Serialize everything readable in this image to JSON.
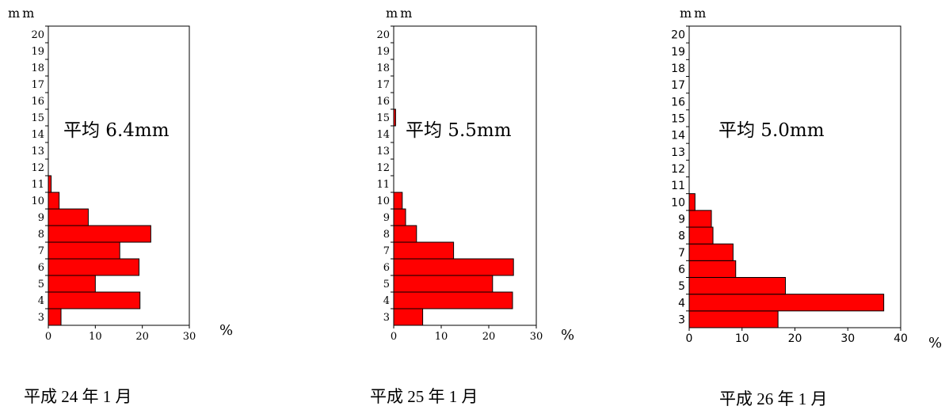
{
  "chart_data": [
    {
      "type": "bar",
      "orientation": "horizontal",
      "y_unit": "mm",
      "x_unit": "%",
      "categories": [
        "3",
        "4",
        "5",
        "6",
        "7",
        "8",
        "9",
        "10",
        "11",
        "12",
        "13",
        "14",
        "15",
        "16",
        "17",
        "18",
        "19",
        "20"
      ],
      "values": [
        2.7,
        19.5,
        10.0,
        19.3,
        15.2,
        21.8,
        8.5,
        2.3,
        0.6,
        0,
        0,
        0,
        0,
        0,
        0,
        0,
        0,
        0
      ],
      "xlim": [
        0,
        30
      ],
      "xticks": [
        "0",
        "10",
        "20",
        "30"
      ],
      "annotation": "平均 6.4mm",
      "caption": "平成 24 年 1 月",
      "bar_color": "#ff0000"
    },
    {
      "type": "bar",
      "orientation": "horizontal",
      "y_unit": "mm",
      "x_unit": "%",
      "categories": [
        "3",
        "4",
        "5",
        "6",
        "7",
        "8",
        "9",
        "10",
        "11",
        "12",
        "13",
        "14",
        "15",
        "16",
        "17",
        "18",
        "19",
        "20"
      ],
      "values": [
        6.1,
        25.0,
        20.8,
        25.2,
        12.6,
        4.8,
        2.5,
        1.8,
        0,
        0,
        0,
        0,
        0.4,
        0,
        0,
        0,
        0,
        0
      ],
      "xlim": [
        0,
        30
      ],
      "xticks": [
        "0",
        "10",
        "20",
        "30"
      ],
      "annotation": "平均 5.5mm",
      "caption": "平成 25 年 1 月",
      "bar_color": "#ff0000"
    },
    {
      "type": "bar",
      "orientation": "horizontal",
      "y_unit": "mm",
      "x_unit": "%",
      "categories": [
        "3",
        "4",
        "5",
        "6",
        "7",
        "8",
        "9",
        "10",
        "11",
        "12",
        "13",
        "14",
        "15",
        "16",
        "17",
        "18",
        "19",
        "20"
      ],
      "values": [
        16.8,
        36.8,
        18.2,
        8.8,
        8.3,
        4.5,
        4.2,
        1.1,
        0,
        0,
        0,
        0,
        0,
        0,
        0,
        0,
        0,
        0
      ],
      "xlim": [
        0,
        40
      ],
      "xticks": [
        "0",
        "10",
        "20",
        "30",
        "40"
      ],
      "annotation": "平均 5.0mm",
      "caption": "平成 26 年 1 月",
      "bar_color": "#ff0000"
    }
  ]
}
